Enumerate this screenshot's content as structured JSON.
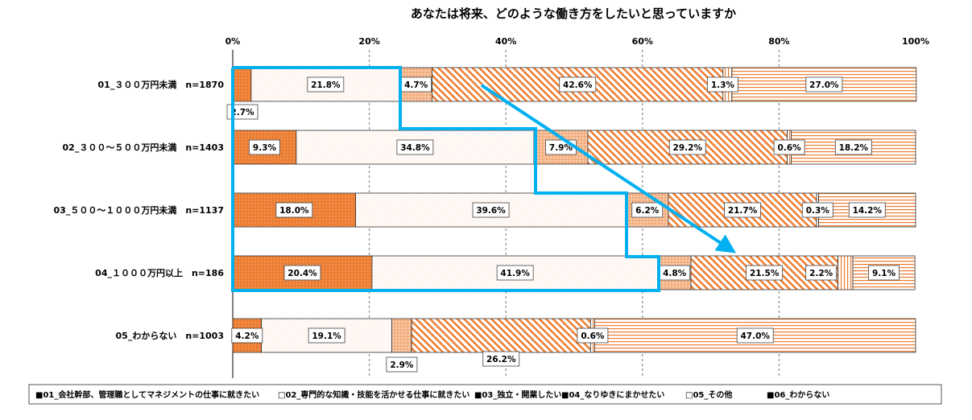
{
  "chart_data": {
    "type": "bar",
    "orientation": "horizontal",
    "stacked": true,
    "normalized": true,
    "title": "あなたは将来、どのような働き方をしたいと思っていますか",
    "xlim": [
      0,
      100
    ],
    "x_ticks": [
      "0%",
      "20%",
      "40%",
      "60%",
      "80%",
      "100%"
    ],
    "grid": "vertical dashed",
    "legend_position": "bottom",
    "categories": [
      "01_３００万円未満　n=1870",
      "02_３００～５００万円未満　n=1403",
      "03_５００～１０００万円未満　n=1137",
      "04_１０００万円以上　n=186",
      "05_わからない　n=1003"
    ],
    "series": [
      {
        "name": "01_会社幹部、管理職としてマネジメントの仕事に就きたい",
        "legend": "■01_会社幹部、管理職としてマネジメントの仕事に就きたい",
        "color": "#ED7D31",
        "values": [
          2.7,
          9.3,
          18.0,
          20.4,
          4.2
        ],
        "labels": [
          "2.7%",
          "9.3%",
          "18.0%",
          "20.4%",
          "4.2%"
        ]
      },
      {
        "name": "02_専門的な知識・技能を活かせる仕事に就きたい",
        "legend": "□02_専門的な知識・技能を活かせる仕事に就きたい",
        "color": "#F4B183",
        "values": [
          21.8,
          34.8,
          39.6,
          41.9,
          19.1
        ],
        "labels": [
          "21.8%",
          "34.8%",
          "39.6%",
          "41.9%",
          "19.1%"
        ]
      },
      {
        "name": "03_独立・開業したい",
        "legend": "■03_独立・開業したい",
        "color": "#F8CBAD",
        "values": [
          4.7,
          7.9,
          6.2,
          4.8,
          2.9
        ],
        "labels": [
          "4.7%",
          "7.9%",
          "6.2%",
          "4.8%",
          "2.9%"
        ]
      },
      {
        "name": "04_なりゆきにまかせたい",
        "legend": "■04_なりゆきにまかせたい",
        "color": "#ED7D31",
        "values": [
          42.6,
          29.2,
          21.7,
          21.5,
          26.2
        ],
        "labels": [
          "42.6%",
          "29.2%",
          "21.7%",
          "21.5%",
          "26.2%"
        ]
      },
      {
        "name": "05_その他",
        "legend": "□05_その他",
        "color": "#ED7D31",
        "values": [
          1.3,
          0.6,
          0.3,
          2.2,
          0.6
        ],
        "labels": [
          "1.3%",
          "0.6%",
          "0.3%",
          "2.2%",
          "0.6%"
        ]
      },
      {
        "name": "06_わからない",
        "legend": "■06_わからない",
        "color": "#ED7D31",
        "values": [
          27.0,
          18.2,
          14.2,
          9.1,
          47.0
        ],
        "labels": [
          "27.0%",
          "18.2%",
          "14.2%",
          "9.1%",
          "47.0%"
        ]
      }
    ],
    "annotation": {
      "description": "blue staircase outline around series 01+02 with arrow",
      "color": "#00B0F0"
    }
  }
}
